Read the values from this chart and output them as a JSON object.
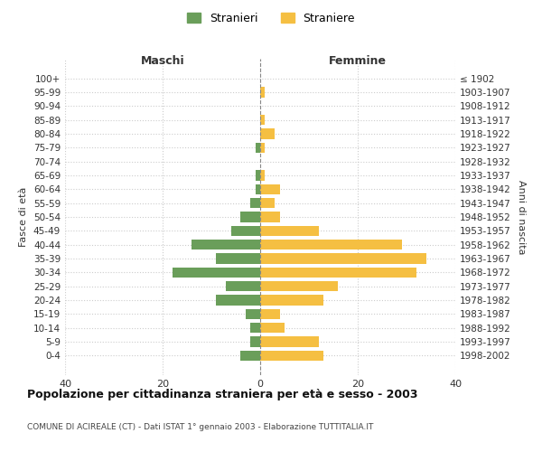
{
  "age_groups": [
    "100+",
    "95-99",
    "90-94",
    "85-89",
    "80-84",
    "75-79",
    "70-74",
    "65-69",
    "60-64",
    "55-59",
    "50-54",
    "45-49",
    "40-44",
    "35-39",
    "30-34",
    "25-29",
    "20-24",
    "15-19",
    "10-14",
    "5-9",
    "0-4"
  ],
  "birth_years": [
    "≤ 1902",
    "1903-1907",
    "1908-1912",
    "1913-1917",
    "1918-1922",
    "1923-1927",
    "1928-1932",
    "1933-1937",
    "1938-1942",
    "1943-1947",
    "1948-1952",
    "1953-1957",
    "1958-1962",
    "1963-1967",
    "1968-1972",
    "1973-1977",
    "1978-1982",
    "1983-1987",
    "1988-1992",
    "1993-1997",
    "1998-2002"
  ],
  "maschi": [
    0,
    0,
    0,
    0,
    0,
    1,
    0,
    1,
    1,
    2,
    4,
    6,
    14,
    9,
    18,
    7,
    9,
    3,
    2,
    2,
    4
  ],
  "femmine": [
    0,
    1,
    0,
    1,
    3,
    1,
    0,
    1,
    4,
    3,
    4,
    12,
    29,
    34,
    32,
    16,
    13,
    4,
    5,
    12,
    13
  ],
  "maschi_color": "#6a9e5a",
  "femmine_color": "#f5bf42",
  "background_color": "#ffffff",
  "grid_color": "#cccccc",
  "title": "Popolazione per cittadinanza straniera per età e sesso - 2003",
  "subtitle": "COMUNE DI ACIREALE (CT) - Dati ISTAT 1° gennaio 2003 - Elaborazione TUTTITALIA.IT",
  "xlabel_left": "Maschi",
  "xlabel_right": "Femmine",
  "ylabel_left": "Fasce di età",
  "ylabel_right": "Anni di nascita",
  "legend_maschi": "Stranieri",
  "legend_femmine": "Straniere",
  "xlim": 40,
  "xticks": [
    -40,
    -20,
    0,
    20,
    40
  ],
  "xticklabels": [
    "40",
    "20",
    "0",
    "20",
    "40"
  ]
}
